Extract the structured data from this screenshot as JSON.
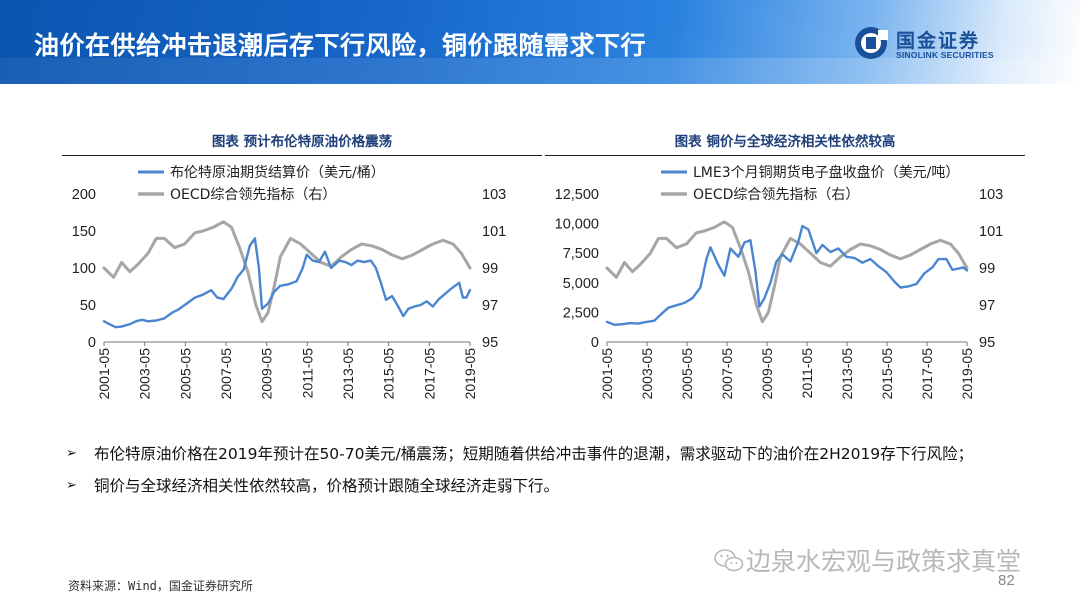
{
  "header": {
    "title": "油价在供给冲击退潮后存下行风险，铜价跟随需求下行"
  },
  "logo": {
    "cn": "国金证券",
    "en": "SINOLINK SECURITIES"
  },
  "panels": [
    {
      "caption": "图表  预计布伦特原油价格震荡"
    },
    {
      "caption": "图表  铜价与全球经济相关性依然较高"
    }
  ],
  "bullets": [
    "布伦特原油价格在2019年预计在50-70美元/桶震荡；短期随着供给冲击事件的退潮，需求驱动下的油价在2H2019存下行风险；",
    "铜价与全球经济相关性依然较高，价格预计跟随全球经济走弱下行。"
  ],
  "bullet_marker": "➢",
  "source": "资料来源：Wind，国金证券研究所",
  "watermark": "边泉水宏观与政策求真堂",
  "page_number": "82",
  "colors": {
    "series_primary": "#4a86d0",
    "series_oecd": "#a6a6a6",
    "title_blue": "#1f3f7a"
  },
  "chart_data": [
    {
      "type": "line",
      "x_tick_labels": [
        "2001-05",
        "2003-05",
        "2005-05",
        "2007-05",
        "2009-05",
        "2011-05",
        "2013-05",
        "2015-05",
        "2017-05",
        "2019-05"
      ],
      "xlim": [
        2001.33,
        2019.33
      ],
      "y_left": {
        "ticks": [
          "0",
          "50",
          "100",
          "150",
          "200"
        ],
        "lim": [
          0,
          200
        ]
      },
      "y_right": {
        "ticks": [
          "95",
          "97",
          "99",
          "101",
          "103"
        ],
        "lim": [
          95,
          103
        ]
      },
      "legend_position": "top",
      "series": [
        {
          "name": "布伦特原油期货结算价（美元/桶）",
          "axis": "left",
          "color": "#4a86d0",
          "x": [
            2001.33,
            2001.6,
            2001.9,
            2002.2,
            2002.6,
            2002.9,
            2003.2,
            2003.5,
            2003.9,
            2004.3,
            2004.7,
            2005.0,
            2005.4,
            2005.8,
            2006.2,
            2006.6,
            2006.9,
            2007.2,
            2007.6,
            2007.9,
            2008.2,
            2008.5,
            2008.75,
            2008.95,
            2009.1,
            2009.4,
            2009.7,
            2010.0,
            2010.4,
            2010.8,
            2011.1,
            2011.3,
            2011.6,
            2011.9,
            2012.2,
            2012.5,
            2012.9,
            2013.2,
            2013.5,
            2013.8,
            2014.1,
            2014.45,
            2014.7,
            2014.95,
            2015.2,
            2015.5,
            2015.8,
            2016.05,
            2016.3,
            2016.6,
            2016.9,
            2017.2,
            2017.5,
            2017.8,
            2018.1,
            2018.4,
            2018.8,
            2018.98,
            2019.15,
            2019.33
          ],
          "y": [
            28,
            24,
            20,
            21,
            24,
            28,
            30,
            28,
            29,
            32,
            40,
            44,
            52,
            60,
            64,
            70,
            60,
            58,
            72,
            88,
            98,
            130,
            140,
            100,
            45,
            52,
            68,
            76,
            78,
            82,
            100,
            118,
            110,
            108,
            122,
            100,
            110,
            108,
            104,
            110,
            108,
            110,
            100,
            80,
            57,
            62,
            48,
            35,
            45,
            48,
            50,
            55,
            48,
            58,
            65,
            72,
            80,
            60,
            60,
            70
          ]
        },
        {
          "name": "OECD综合领先指标（右）",
          "axis": "right",
          "color": "#a6a6a6",
          "x": [
            2001.33,
            2001.8,
            2002.2,
            2002.6,
            2003.0,
            2003.5,
            2003.9,
            2004.3,
            2004.8,
            2005.3,
            2005.8,
            2006.2,
            2006.7,
            2007.2,
            2007.6,
            2008.0,
            2008.4,
            2008.8,
            2009.1,
            2009.4,
            2009.7,
            2010.0,
            2010.5,
            2011.0,
            2011.5,
            2012.0,
            2012.5,
            2013.0,
            2013.5,
            2014.0,
            2014.5,
            2015.0,
            2015.5,
            2016.0,
            2016.5,
            2017.0,
            2017.5,
            2018.0,
            2018.5,
            2018.9,
            2019.33
          ],
          "y": [
            99.0,
            98.5,
            99.3,
            98.8,
            99.2,
            99.8,
            100.6,
            100.6,
            100.1,
            100.3,
            100.9,
            101.0,
            101.2,
            101.5,
            101.2,
            100.1,
            98.8,
            97.0,
            96.1,
            96.6,
            98.0,
            99.6,
            100.6,
            100.3,
            99.8,
            99.3,
            99.1,
            99.6,
            100.0,
            100.3,
            100.2,
            100.0,
            99.7,
            99.5,
            99.7,
            100.0,
            100.3,
            100.5,
            100.3,
            99.8,
            99.0
          ]
        }
      ]
    },
    {
      "type": "line",
      "x_tick_labels": [
        "2001-05",
        "2003-05",
        "2005-05",
        "2007-05",
        "2009-05",
        "2011-05",
        "2013-05",
        "2015-05",
        "2017-05",
        "2019-05"
      ],
      "xlim": [
        2001.33,
        2019.33
      ],
      "y_left": {
        "ticks": [
          "0",
          "2,500",
          "5,000",
          "7,500",
          "10,000",
          "12,500"
        ],
        "lim": [
          0,
          12500
        ]
      },
      "y_right": {
        "ticks": [
          "95",
          "97",
          "99",
          "101",
          "103"
        ],
        "lim": [
          95,
          103
        ]
      },
      "legend_position": "top",
      "series": [
        {
          "name": "LME3个月铜期货电子盘收盘价（美元/吨）",
          "axis": "left",
          "color": "#4a86d0",
          "x": [
            2001.33,
            2001.7,
            2002.1,
            2002.5,
            2002.9,
            2003.3,
            2003.7,
            2004.0,
            2004.4,
            2004.8,
            2005.2,
            2005.6,
            2006.0,
            2006.3,
            2006.5,
            2006.9,
            2007.2,
            2007.5,
            2007.9,
            2008.2,
            2008.5,
            2008.75,
            2008.95,
            2009.2,
            2009.5,
            2009.8,
            2010.1,
            2010.5,
            2010.9,
            2011.1,
            2011.4,
            2011.8,
            2012.1,
            2012.5,
            2012.9,
            2013.3,
            2013.7,
            2014.1,
            2014.5,
            2014.9,
            2015.3,
            2015.7,
            2016.0,
            2016.4,
            2016.8,
            2017.2,
            2017.6,
            2017.9,
            2018.3,
            2018.6,
            2018.9,
            2019.15,
            2019.33
          ],
          "y": [
            1700,
            1450,
            1500,
            1600,
            1550,
            1700,
            1800,
            2300,
            2900,
            3100,
            3300,
            3700,
            4600,
            7000,
            8000,
            6500,
            5600,
            7900,
            7200,
            8400,
            8600,
            6000,
            3000,
            3700,
            5000,
            6800,
            7400,
            6800,
            8500,
            9800,
            9500,
            7500,
            8200,
            7600,
            7900,
            7200,
            7100,
            6700,
            7000,
            6400,
            5900,
            5100,
            4600,
            4700,
            4900,
            5800,
            6300,
            7000,
            7000,
            6100,
            6200,
            6300,
            6050
          ]
        },
        {
          "name": "OECD综合领先指标（右）",
          "axis": "right",
          "color": "#a6a6a6",
          "x": [
            2001.33,
            2001.8,
            2002.2,
            2002.6,
            2003.0,
            2003.5,
            2003.9,
            2004.3,
            2004.8,
            2005.3,
            2005.8,
            2006.2,
            2006.7,
            2007.2,
            2007.6,
            2008.0,
            2008.4,
            2008.8,
            2009.1,
            2009.4,
            2009.7,
            2010.0,
            2010.5,
            2011.0,
            2011.5,
            2012.0,
            2012.5,
            2013.0,
            2013.5,
            2014.0,
            2014.5,
            2015.0,
            2015.5,
            2016.0,
            2016.5,
            2017.0,
            2017.5,
            2018.0,
            2018.5,
            2018.9,
            2019.33
          ],
          "y": [
            99.0,
            98.5,
            99.3,
            98.8,
            99.2,
            99.8,
            100.6,
            100.6,
            100.1,
            100.3,
            100.9,
            101.0,
            101.2,
            101.5,
            101.2,
            100.1,
            98.8,
            97.0,
            96.1,
            96.6,
            98.0,
            99.6,
            100.6,
            100.3,
            99.8,
            99.3,
            99.1,
            99.6,
            100.0,
            100.3,
            100.2,
            100.0,
            99.7,
            99.5,
            99.7,
            100.0,
            100.3,
            100.5,
            100.3,
            99.8,
            99.0
          ]
        }
      ]
    }
  ]
}
